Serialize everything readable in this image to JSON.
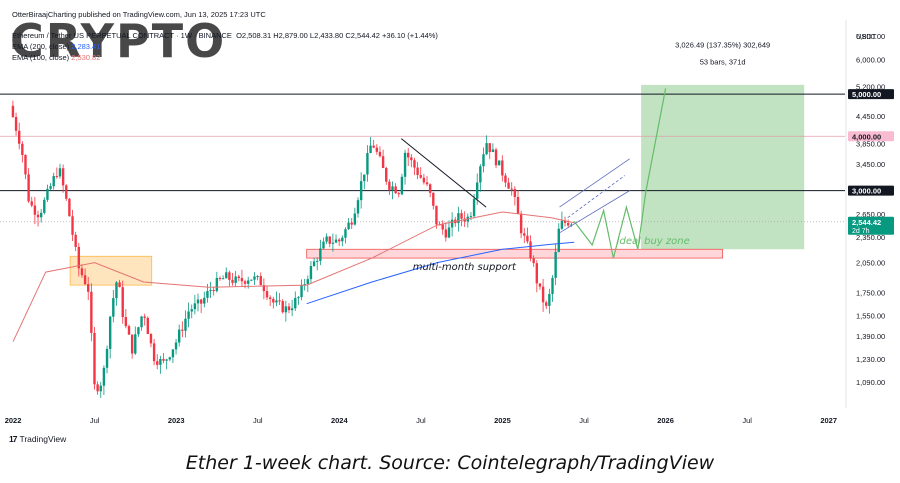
{
  "header": {
    "published": "OtterBiraajCharting published on TradingView.com, Jun 13, 2025 17:23 UTC",
    "symbol": "Ethereum / Tether US PERPETUAL CONTRACT · 1W · BINANCE",
    "ohlc": "O2,508.31 H2,879.00 L2,433.80 C2,544.42 +36.10 (+1.44%)",
    "ema200_label": "EMA (200, close)",
    "ema200_value": "2,283.41",
    "ema100_label": "EMA (100, close)",
    "ema100_value": "2,530.82"
  },
  "watermark": "CRYPTO",
  "branding": "TradingView",
  "caption": "Ether 1-week chart. Source: Cointelegraph/TradingView",
  "colors": {
    "up": "#089981",
    "down": "#f23645",
    "ema200": "#2962ff",
    "ema100": "#e57373",
    "target_zone": "#4caf50",
    "support_box": "#ffcdd2",
    "orange_box": "#ffe0b2",
    "annotation_green": "#66bb6a"
  },
  "chart_data": {
    "type": "candlestick",
    "currency": "USDT",
    "scale": "log",
    "ylim": [
      950,
      7400
    ],
    "y_ticks": [
      "6,800.00",
      "6,000.00",
      "5,200.00",
      "4,450.00",
      "3,850.00",
      "3,450.00",
      "2,650.00",
      "2,350.00",
      "2,050.00",
      "1,750.00",
      "1,550.00",
      "1,390.00",
      "1,230.00",
      "1,090.00"
    ],
    "x_ticks": [
      "2022",
      "Jul",
      "2023",
      "Jul",
      "2024",
      "Jul",
      "2025",
      "Jul",
      "2026",
      "Jul",
      "2027"
    ],
    "horizontal_levels": [
      {
        "value": 5000,
        "label": "5,000.00",
        "style": "dark"
      },
      {
        "value": 4000,
        "label": "4,000.00",
        "style": "pink"
      },
      {
        "value": 3000,
        "label": "3,000.00",
        "style": "dark"
      },
      {
        "value": 2544.42,
        "label": "2,544.42",
        "sublabel": "2d 7h",
        "style": "current"
      }
    ],
    "weekly_close_path": [
      [
        2021.98,
        4700
      ],
      [
        2022.05,
        3800
      ],
      [
        2022.1,
        2800
      ],
      [
        2022.16,
        2650
      ],
      [
        2022.22,
        3000
      ],
      [
        2022.28,
        3400
      ],
      [
        2022.34,
        2700
      ],
      [
        2022.4,
        2000
      ],
      [
        2022.46,
        1800
      ],
      [
        2022.5,
        1050
      ],
      [
        2022.55,
        1100
      ],
      [
        2022.6,
        1600
      ],
      [
        2022.64,
        1900
      ],
      [
        2022.68,
        1500
      ],
      [
        2022.73,
        1300
      ],
      [
        2022.8,
        1600
      ],
      [
        2022.86,
        1250
      ],
      [
        2022.92,
        1200
      ],
      [
        2023.0,
        1350
      ],
      [
        2023.08,
        1600
      ],
      [
        2023.15,
        1650
      ],
      [
        2023.22,
        1800
      ],
      [
        2023.3,
        1900
      ],
      [
        2023.38,
        1850
      ],
      [
        2023.45,
        1900
      ],
      [
        2023.52,
        1850
      ],
      [
        2023.6,
        1650
      ],
      [
        2023.68,
        1600
      ],
      [
        2023.75,
        1700
      ],
      [
        2023.8,
        1900
      ],
      [
        2023.86,
        2100
      ],
      [
        2023.92,
        2300
      ],
      [
        2024.0,
        2300
      ],
      [
        2024.08,
        2600
      ],
      [
        2024.15,
        3300
      ],
      [
        2024.2,
        3900
      ],
      [
        2024.25,
        3500
      ],
      [
        2024.3,
        3100
      ],
      [
        2024.37,
        3000
      ],
      [
        2024.4,
        3700
      ],
      [
        2024.46,
        3400
      ],
      [
        2024.55,
        3000
      ],
      [
        2024.6,
        2500
      ],
      [
        2024.66,
        2400
      ],
      [
        2024.72,
        2600
      ],
      [
        2024.8,
        2600
      ],
      [
        2024.85,
        3300
      ],
      [
        2024.9,
        3900
      ],
      [
        2024.95,
        3600
      ],
      [
        2025.0,
        3300
      ],
      [
        2025.06,
        3000
      ],
      [
        2025.12,
        2400
      ],
      [
        2025.18,
        2100
      ],
      [
        2025.22,
        1800
      ],
      [
        2025.27,
        1600
      ],
      [
        2025.3,
        1800
      ],
      [
        2025.35,
        2500
      ],
      [
        2025.4,
        2550
      ],
      [
        2025.44,
        2544
      ]
    ],
    "ema200_path": [
      [
        2023.8,
        1650
      ],
      [
        2024.2,
        1850
      ],
      [
        2024.6,
        2050
      ],
      [
        2025.0,
        2200
      ],
      [
        2025.3,
        2260
      ],
      [
        2025.44,
        2283
      ]
    ],
    "ema100_path": [
      [
        2022.0,
        1350
      ],
      [
        2022.2,
        1950
      ],
      [
        2022.5,
        2050
      ],
      [
        2022.8,
        1850
      ],
      [
        2023.2,
        1800
      ],
      [
        2023.8,
        1820
      ],
      [
        2024.2,
        2100
      ],
      [
        2024.6,
        2500
      ],
      [
        2025.0,
        2680
      ],
      [
        2025.3,
        2600
      ],
      [
        2025.44,
        2531
      ]
    ],
    "annotations": {
      "measure_label": "3,026.49 (137.35%) 302,649",
      "measure_sublabel": "53 bars, 371d",
      "ideal_zone_label": "Ideal buy zone",
      "support_label": "multi-month support"
    },
    "zones": {
      "target_box": {
        "x0": 2025.85,
        "x1": 2026.85,
        "y0": 2200,
        "y1": 5250
      },
      "support_box": {
        "x0": 2023.8,
        "x1": 2026.35,
        "y0": 2100,
        "y1": 2200
      },
      "orange_box": {
        "x0": 2022.35,
        "x1": 2022.85,
        "y0": 1820,
        "y1": 2120
      },
      "forecast_path": [
        [
          2025.44,
          2550
        ],
        [
          2025.55,
          2250
        ],
        [
          2025.62,
          2700
        ],
        [
          2025.68,
          2100
        ],
        [
          2025.76,
          2750
        ],
        [
          2025.83,
          2200
        ],
        [
          2025.88,
          3000
        ],
        [
          2026.0,
          5150
        ]
      ]
    }
  }
}
